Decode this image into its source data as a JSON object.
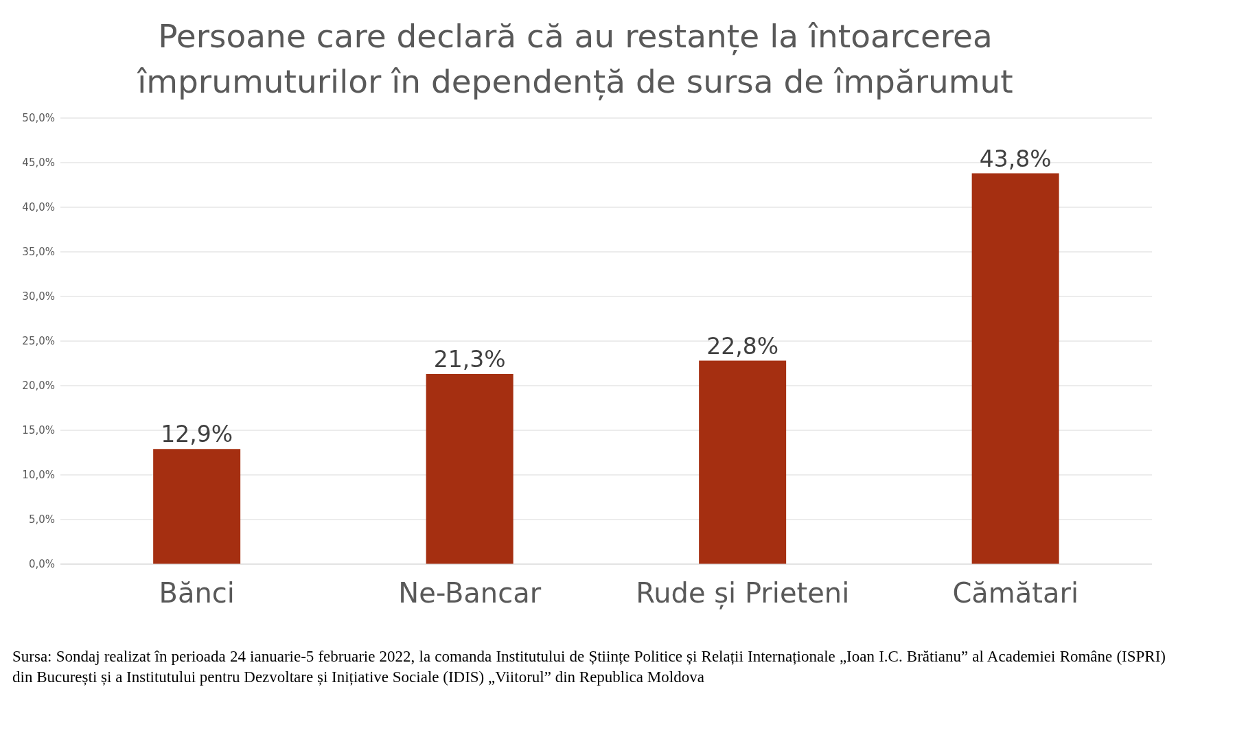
{
  "chart_data": {
    "type": "bar",
    "title": "Persoane care declară că au restanțe la întoarcerea\nîmprumuturilor în dependență de sursa de împărumut",
    "categories": [
      "Bănci",
      "Ne-Bancar",
      "Rude și Prieteni",
      "Cămătari"
    ],
    "values": [
      12.9,
      21.3,
      22.8,
      43.8
    ],
    "value_labels": [
      "12,9%",
      "21,3%",
      "22,8%",
      "43,8%"
    ],
    "color": "#a52f11",
    "ylim": [
      0,
      50
    ],
    "yticks": [
      {
        "value": 0,
        "label": "0,0%"
      },
      {
        "value": 5,
        "label": "5,0%"
      },
      {
        "value": 10,
        "label": "10,0%"
      },
      {
        "value": 15,
        "label": "15,0%"
      },
      {
        "value": 20,
        "label": "20,0%"
      },
      {
        "value": 25,
        "label": "25,0%"
      },
      {
        "value": 30,
        "label": "30,0%"
      },
      {
        "value": 35,
        "label": "35,0%"
      },
      {
        "value": 40,
        "label": "40,0%"
      },
      {
        "value": 45,
        "label": "45,0%"
      },
      {
        "value": 50,
        "label": "50,0%"
      }
    ],
    "grid": "y",
    "annotations": [
      "Sursa: Sondaj realizat în perioada 24 ianuarie-5 februarie 2022, la comanda Institutului de Științe Politice și Relații Internaționale „Ioan I.C. Brătianu” al Academiei Române (ISPRI) din București și a Institutului pentru Dezvoltare și Inițiative Sociale (IDIS) „Viitorul” din Republica Moldova"
    ]
  }
}
